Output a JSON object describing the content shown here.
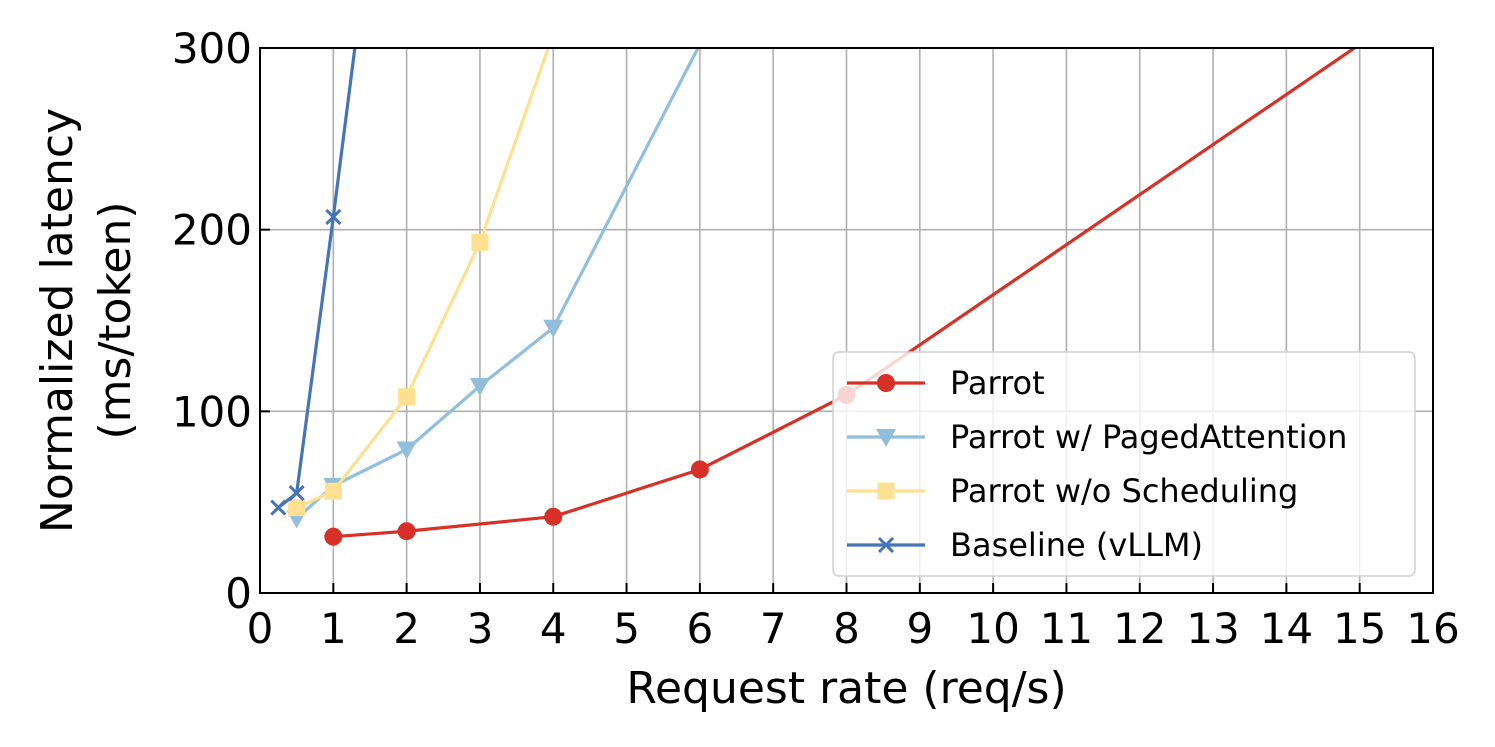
{
  "chart_data": {
    "type": "line",
    "title": "",
    "xlabel": "Request rate (req/s)",
    "ylabel_line1": "Normalized latency",
    "ylabel_line2": "(ms/token)",
    "xlim": [
      0,
      16
    ],
    "ylim": [
      0,
      300
    ],
    "xticks": [
      0,
      1,
      2,
      3,
      4,
      5,
      6,
      7,
      8,
      9,
      10,
      11,
      12,
      13,
      14,
      15,
      16
    ],
    "yticks": [
      0,
      100,
      200,
      300
    ],
    "grid": true,
    "legend_position": "lower-right",
    "series": [
      {
        "name": "Parrot",
        "color": "#d73027",
        "marker": "circle",
        "points": [
          [
            1,
            31
          ],
          [
            2,
            34
          ],
          [
            4,
            42
          ],
          [
            6,
            68
          ],
          [
            8,
            109
          ],
          [
            15,
            302
          ]
        ]
      },
      {
        "name": "Parrot w/ PagedAttention",
        "color": "#91bfdb",
        "marker": "triangle-down",
        "points": [
          [
            0.5,
            41
          ],
          [
            1,
            59
          ],
          [
            2,
            79
          ],
          [
            3,
            114
          ],
          [
            4,
            146
          ],
          [
            6,
            302
          ]
        ]
      },
      {
        "name": "Parrot w/o Scheduling",
        "color": "#fee090",
        "marker": "square",
        "points": [
          [
            0.5,
            47
          ],
          [
            1,
            56
          ],
          [
            2,
            108
          ],
          [
            3,
            193
          ],
          [
            3.95,
            302
          ]
        ]
      },
      {
        "name": "Baseline (vLLM)",
        "color": "#4575b4",
        "marker": "x",
        "points": [
          [
            0.25,
            47
          ],
          [
            0.5,
            55
          ],
          [
            1,
            207
          ],
          [
            1.3,
            302
          ]
        ]
      }
    ]
  }
}
